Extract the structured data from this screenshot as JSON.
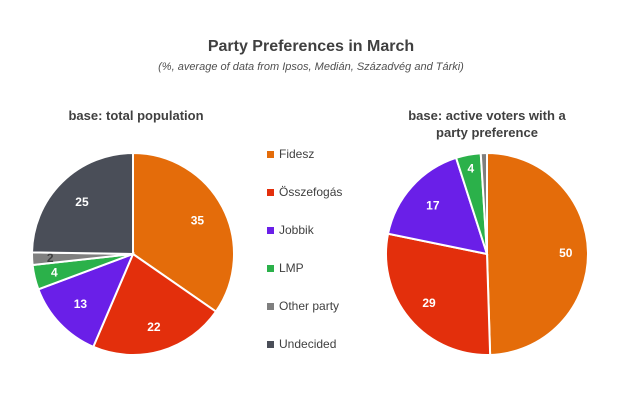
{
  "chart_data": {
    "type": "pie",
    "title": "Party Preferences in March",
    "subtitle": "(%, average of data from Ipsos, Medián, Századvég and Tárki)",
    "legend": [
      {
        "label": "Fidesz",
        "color": "#E46C0A"
      },
      {
        "label": "Összefogás",
        "color": "#E32F0C"
      },
      {
        "label": "Jobbik",
        "color": "#6A1FE8"
      },
      {
        "label": "LMP",
        "color": "#2BB14A"
      },
      {
        "label": "Other party",
        "color": "#7F7F7F"
      },
      {
        "label": "Undecided",
        "color": "#4A4E58"
      }
    ],
    "legend_position": "center",
    "pies": [
      {
        "title": "base: total population",
        "categories": [
          "Fidesz",
          "Összefogás",
          "Jobbik",
          "LMP",
          "Other party",
          "Undecided"
        ],
        "values": [
          35,
          22,
          13,
          4,
          2,
          25
        ],
        "labels": [
          "35",
          "22",
          "13",
          "4",
          "2",
          "25"
        ]
      },
      {
        "title": "base: active voters with a party preference",
        "categories": [
          "Fidesz",
          "Összefogás",
          "Jobbik",
          "LMP",
          "Other party"
        ],
        "values": [
          50,
          29,
          17,
          4,
          1
        ],
        "labels": [
          "50",
          "29",
          "17",
          "4",
          ""
        ]
      }
    ]
  }
}
